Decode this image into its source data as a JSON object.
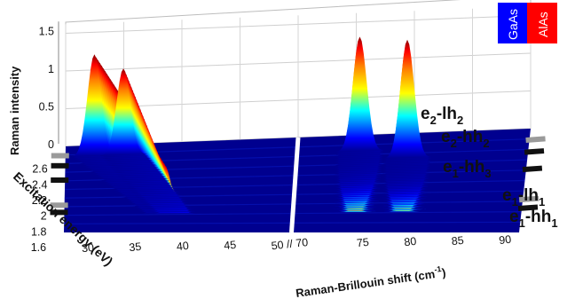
{
  "chart_data": {
    "type": "area",
    "subtype": "3d-waterfall-surface",
    "ylabel": "Raman intensity",
    "xlabel": "Raman-Brillouin shift (cm",
    "xlabel_sup": "-1",
    "xlabel_close": ")",
    "zlabel": "Excitation energy (eV)",
    "intensity_ticks": [
      "0",
      "0.5",
      "1",
      "1.5"
    ],
    "shift_ticks": [
      "30",
      "35",
      "40",
      "45",
      "50 // 70",
      "75",
      "80",
      "85",
      "90"
    ],
    "energy_ticks": [
      "1.6",
      "1.8",
      "2",
      "2.2",
      "2.4",
      "2.6"
    ],
    "axis_break": "//",
    "ylim": [
      0,
      1.6
    ],
    "xlim_left": [
      28,
      52
    ],
    "xlim_right": [
      68,
      92
    ],
    "energy_range": [
      1.55,
      2.75
    ],
    "legend": [
      {
        "label": "GaAs",
        "color": "#0000ff"
      },
      {
        "label": "AlAs",
        "color": "#ff0000"
      }
    ],
    "transitions": [
      {
        "name": "e2-lh2",
        "base": "e",
        "s1": "2",
        "mid": "-lh",
        "s2": "2",
        "energy": 2.62,
        "marker_color": "#9a9a9a"
      },
      {
        "name": "e2-hh2",
        "base": "e",
        "s1": "2",
        "mid": "-hh",
        "s2": "2",
        "energy": 2.48,
        "marker_color": "#111111"
      },
      {
        "name": "e1-hh3",
        "base": "e",
        "s1": "1",
        "mid": "-hh",
        "s2": "3",
        "energy": 2.28,
        "marker_color": "#111111"
      },
      {
        "name": "e1-lh1",
        "base": "e",
        "s1": "1",
        "mid": "-lh",
        "s2": "1",
        "energy": 1.93,
        "marker_color": "#9a9a9a"
      },
      {
        "name": "e1-hh1",
        "base": "e",
        "s1": "1",
        "mid": "-hh",
        "s2": "1",
        "energy": 1.83,
        "marker_color": "#111111"
      }
    ],
    "surface_color_scale": "jet",
    "baseline_color": "#00008f",
    "series": [
      {
        "name": "",
        "segment": "left",
        "peak_shift": [
          31.0,
          38.5
        ],
        "peak_height": [
          1.35,
          0.65
        ],
        "energy_at_peak": [
          2.6,
          1.8
        ],
        "note_shift": "dispersive"
      },
      {
        "name": "",
        "segment": "left",
        "peak_shift": [
          34.0,
          39.5
        ],
        "peak_height": [
          1.15,
          0.2
        ],
        "energy_at_peak": [
          2.6,
          1.8
        ]
      },
      {
        "name": "",
        "segment": "right",
        "peak_shift": [
          74.5,
          74.5
        ],
        "peak_height": [
          1.5,
          0.1
        ],
        "energy_at_peak": [
          2.55,
          1.8
        ]
      },
      {
        "name": "",
        "segment": "right",
        "peak_shift": [
          79.5,
          79.5
        ],
        "peak_height": [
          1.55,
          0.1
        ],
        "energy_at_peak": [
          2.45,
          1.8
        ]
      }
    ]
  }
}
